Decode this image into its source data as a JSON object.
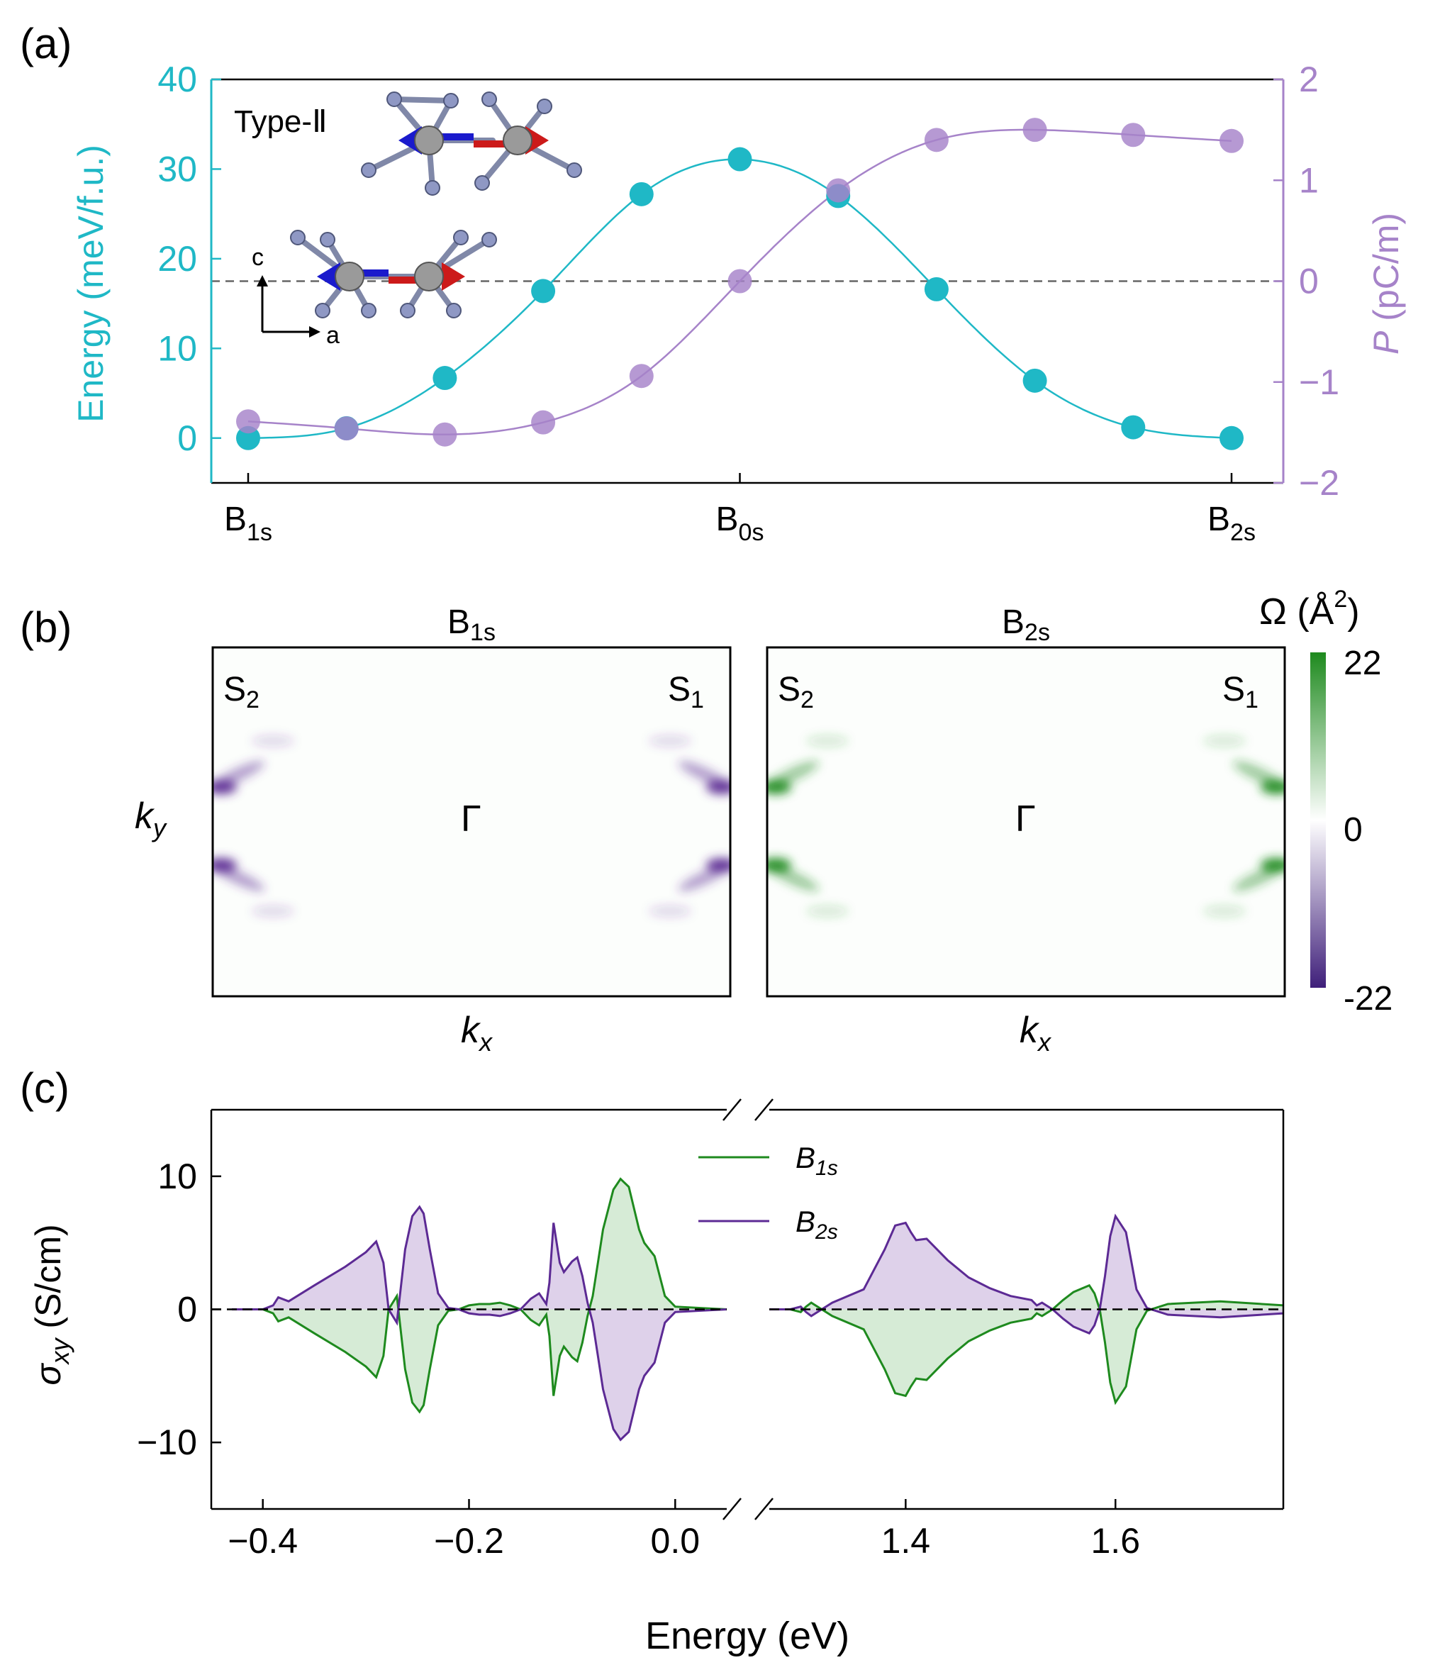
{
  "colors": {
    "energy": "#1fb8c6",
    "polarization": "#a683c9",
    "b1s": "#1e8a1e",
    "b2s": "#5c2a94",
    "b1s_fill": "#cfe8cf",
    "b2s_fill": "#d8c9e6",
    "arrow_red": "#cc1a1a",
    "arrow_blue": "#1a1acc"
  },
  "chart_data": [
    {
      "type": "line",
      "panel_label": "(a)",
      "annotation": "Type-Ⅱ",
      "axis_labels": {
        "c": "c",
        "a": "a"
      },
      "x_ticks": [
        {
          "main": "B",
          "sub": "1s"
        },
        {
          "main": "B",
          "sub": "0s"
        },
        {
          "main": "B",
          "sub": "2s"
        }
      ],
      "xlim": [
        0,
        10
      ],
      "ylabel_left": "Energy (meV/f.u.)",
      "ylim_left": [
        -5,
        40
      ],
      "yticks_left": [
        "0",
        "10",
        "20",
        "30",
        "40"
      ],
      "ylabel_right_symbol": "P",
      "ylabel_right_unit": " (pC/m)",
      "ylim_right": [
        -2,
        2
      ],
      "yticks_right": [
        "−2",
        "−1",
        "0",
        "1",
        "2"
      ],
      "reference_line_right": 0,
      "series": [
        {
          "name": "Energy",
          "axis": "left",
          "x": [
            0,
            1,
            2,
            3,
            4,
            5,
            6,
            7,
            8,
            9,
            10
          ],
          "values": [
            0,
            1.1,
            6.7,
            16.4,
            27.2,
            31.1,
            27,
            16.6,
            6.4,
            1.2,
            0
          ]
        },
        {
          "name": "P",
          "axis": "right",
          "x": [
            0,
            1,
            2,
            3,
            4,
            5,
            6,
            7,
            8,
            9,
            10
          ],
          "values": [
            -1.39,
            -1.46,
            -1.52,
            -1.4,
            -0.94,
            0,
            0.9,
            1.4,
            1.5,
            1.45,
            1.39
          ]
        }
      ]
    },
    {
      "type": "heatmap",
      "panel_label": "(b)",
      "colorbar_label": "Ω (Å",
      "colorbar_sup": "2",
      "colorbar_close": ")",
      "colorbar_ticks": [
        "22",
        "0",
        "-22"
      ],
      "vlim": [
        -22,
        22
      ],
      "panels": [
        {
          "title_main": "B",
          "title_sub": "1s",
          "sign": -1,
          "xlabel_main": "k",
          "xlabel_sub": "x",
          "ylabel_main": "k",
          "ylabel_sub": "y",
          "labels": [
            {
              "main": "S",
              "sub": "2"
            },
            {
              "main": "S",
              "sub": "1"
            },
            {
              "main": "Γ",
              "sub": ""
            }
          ]
        },
        {
          "title_main": "B",
          "title_sub": "2s",
          "sign": 1,
          "xlabel_main": "k",
          "xlabel_sub": "x",
          "labels": [
            {
              "main": "S",
              "sub": "2"
            },
            {
              "main": "S",
              "sub": "1"
            },
            {
              "main": "Γ",
              "sub": ""
            }
          ]
        }
      ]
    },
    {
      "type": "area",
      "panel_label": "(c)",
      "xlabel": "Energy (eV)",
      "ylabel_main": "σ",
      "ylabel_sub": "xy",
      "ylabel_unit": " (S/cm)",
      "ylim": [
        -15,
        15
      ],
      "yticks": [
        "10",
        "0",
        "−10"
      ],
      "xlim_left": [
        -0.45,
        0.05
      ],
      "xticks_left": [
        "−0.4",
        "−0.2",
        "0.0"
      ],
      "xlim_right": [
        1.27,
        1.76
      ],
      "xticks_right": [
        "1.4",
        "1.6"
      ],
      "legend": [
        {
          "main": "B",
          "sub": "1s"
        },
        {
          "main": "B",
          "sub": "2s"
        }
      ],
      "series_b2s_left": {
        "x": [
          -0.43,
          -0.4,
          -0.39,
          -0.385,
          -0.375,
          -0.35,
          -0.32,
          -0.3,
          -0.29,
          -0.283,
          -0.278,
          -0.27,
          -0.262,
          -0.255,
          -0.248,
          -0.244,
          -0.238,
          -0.23,
          -0.22,
          -0.21,
          -0.2,
          -0.19,
          -0.18,
          -0.17,
          -0.16,
          -0.15,
          -0.14,
          -0.132,
          -0.125,
          -0.122,
          -0.118,
          -0.112,
          -0.108,
          -0.1,
          -0.095,
          -0.09,
          -0.085,
          -0.08,
          -0.075,
          -0.07,
          -0.06,
          -0.053,
          -0.045,
          -0.035,
          -0.03,
          -0.02,
          -0.01,
          0.0,
          0.05
        ],
        "values": [
          0,
          0,
          0.3,
          0.9,
          0.6,
          1.8,
          3.2,
          4.3,
          5.1,
          3.5,
          0,
          -1,
          4.5,
          7.0,
          7.7,
          7.2,
          4.5,
          1.2,
          0.1,
          0,
          -0.3,
          -0.4,
          -0.4,
          -0.5,
          -0.3,
          0,
          0.8,
          1.2,
          0.4,
          2.0,
          6.5,
          3.5,
          2.8,
          3.6,
          3.9,
          2.5,
          0.5,
          -1.0,
          -3.5,
          -6.0,
          -9.0,
          -9.8,
          -9.2,
          -6.0,
          -5.0,
          -4.0,
          -1.0,
          -0.2,
          0
        ]
      },
      "series_b2s_right": {
        "x": [
          1.27,
          1.29,
          1.3,
          1.305,
          1.31,
          1.33,
          1.36,
          1.38,
          1.39,
          1.4,
          1.405,
          1.41,
          1.42,
          1.44,
          1.46,
          1.48,
          1.5,
          1.52,
          1.525,
          1.53,
          1.54,
          1.55,
          1.56,
          1.575,
          1.58,
          1.585,
          1.59,
          1.595,
          1.6,
          1.61,
          1.62,
          1.63,
          1.65,
          1.7,
          1.76
        ],
        "values": [
          0,
          0,
          0.2,
          -0.2,
          -0.5,
          0.5,
          1.5,
          4.5,
          6.3,
          6.5,
          5.8,
          5.2,
          5.3,
          3.7,
          2.4,
          1.6,
          1.0,
          0.7,
          0.3,
          0.5,
          0,
          -0.7,
          -1.3,
          -1.8,
          -1.2,
          0,
          2.5,
          5.5,
          7.0,
          5.8,
          1.5,
          0.1,
          -0.4,
          -0.6,
          -0.3
        ]
      }
    }
  ]
}
